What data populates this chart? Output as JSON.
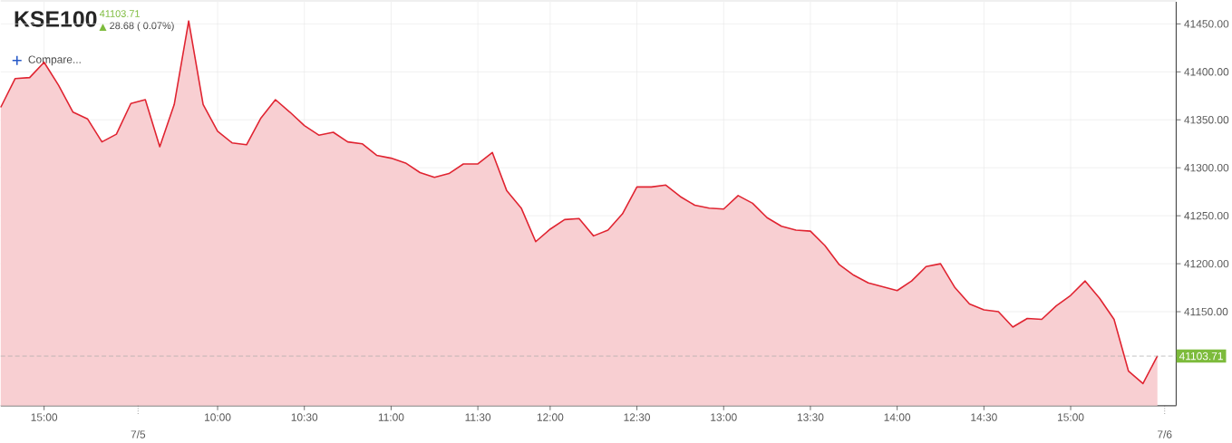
{
  "chart_data": {
    "type": "area",
    "title": "KSE100",
    "annotations": [
      "41103.71",
      "28.68 ( 0.07%)",
      "Compare...",
      "7/5",
      "7/6"
    ],
    "categories": [
      null,
      null,
      null,
      "15:00",
      null,
      null,
      null,
      null,
      null,
      null,
      null,
      null,
      null,
      null,
      null,
      "10:00",
      null,
      null,
      null,
      null,
      null,
      "10:30",
      null,
      null,
      null,
      null,
      null,
      "11:00",
      null,
      null,
      null,
      null,
      null,
      "11:30",
      null,
      null,
      null,
      null,
      "12:00",
      null,
      null,
      null,
      null,
      null,
      "12:30",
      null,
      null,
      null,
      null,
      null,
      "13:00",
      null,
      null,
      null,
      null,
      null,
      "13:30",
      null,
      null,
      null,
      null,
      null,
      "14:00",
      null,
      null,
      null,
      null,
      null,
      "14:30",
      null,
      null,
      null,
      null,
      null,
      "15:00",
      null,
      null,
      null,
      null,
      null,
      null
    ],
    "series": [
      {
        "color": "#e02431",
        "values": [
          41363,
          41393,
          41394,
          41410,
          41386,
          41358,
          41351,
          41327,
          41335,
          41367,
          41371,
          41322,
          41366,
          41453,
          41366,
          41338,
          41326,
          41324,
          41352,
          41371,
          41358,
          41344,
          41334,
          41337,
          41327,
          41325,
          41313,
          41310,
          41305,
          41295,
          41290,
          41294,
          41304,
          41304,
          41316,
          41276,
          41258,
          41223,
          41236,
          41246,
          41247,
          41229,
          41235,
          41252,
          41280,
          41280,
          41282,
          41270,
          41261,
          41258,
          41257,
          41271,
          41263,
          41248,
          41239,
          41235,
          41234,
          41219,
          41199,
          41188,
          41180,
          41176,
          41172,
          41182,
          41197,
          41200,
          41175,
          41158,
          41152,
          41150,
          41134,
          41143,
          41142,
          41156,
          41167,
          41182,
          41164,
          41142,
          41088,
          41075,
          41104
        ]
      }
    ],
    "ylim": [
      41052,
      41473
    ],
    "yticks": [
      {
        "value": 41150,
        "label": "41150.00"
      },
      {
        "value": 41200,
        "label": "41200.00"
      },
      {
        "value": 41250,
        "label": "41250.00"
      },
      {
        "value": 41300,
        "label": "41300.00"
      },
      {
        "value": 41350,
        "label": "41350.00"
      },
      {
        "value": 41400,
        "label": "41400.00"
      },
      {
        "value": 41450,
        "label": "41450.00"
      }
    ],
    "ref_lines": [
      {
        "axis": "y",
        "value": 41103.71,
        "label": "41103.71",
        "color": "#aaaaaa",
        "line_style": "dashed"
      }
    ],
    "grid": true
  }
}
